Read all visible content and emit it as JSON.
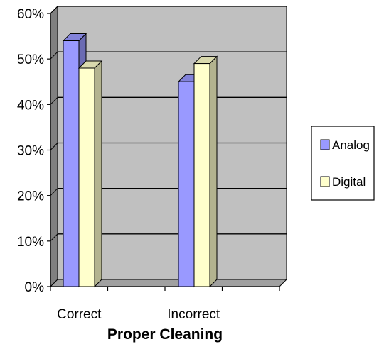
{
  "chart_data": {
    "type": "bar",
    "categories": [
      "Correct",
      "Incorrect"
    ],
    "series": [
      {
        "name": "Analog",
        "values": [
          54,
          45
        ]
      },
      {
        "name": "Digital",
        "values": [
          48,
          49
        ]
      }
    ],
    "xlabel": "Proper Cleaning",
    "ylabel": "",
    "ylim": [
      0,
      60
    ],
    "yticks": [
      "0%",
      "10%",
      "20%",
      "30%",
      "40%",
      "50%",
      "60%"
    ],
    "grid": true,
    "legend_position": "right",
    "style": "3d"
  },
  "colors": {
    "Analog": "#9999ff",
    "Digital": "#ffffcc",
    "plot_background": "#c0c0c0",
    "wall_side": "#808080",
    "floor": "#a0a0a0"
  }
}
